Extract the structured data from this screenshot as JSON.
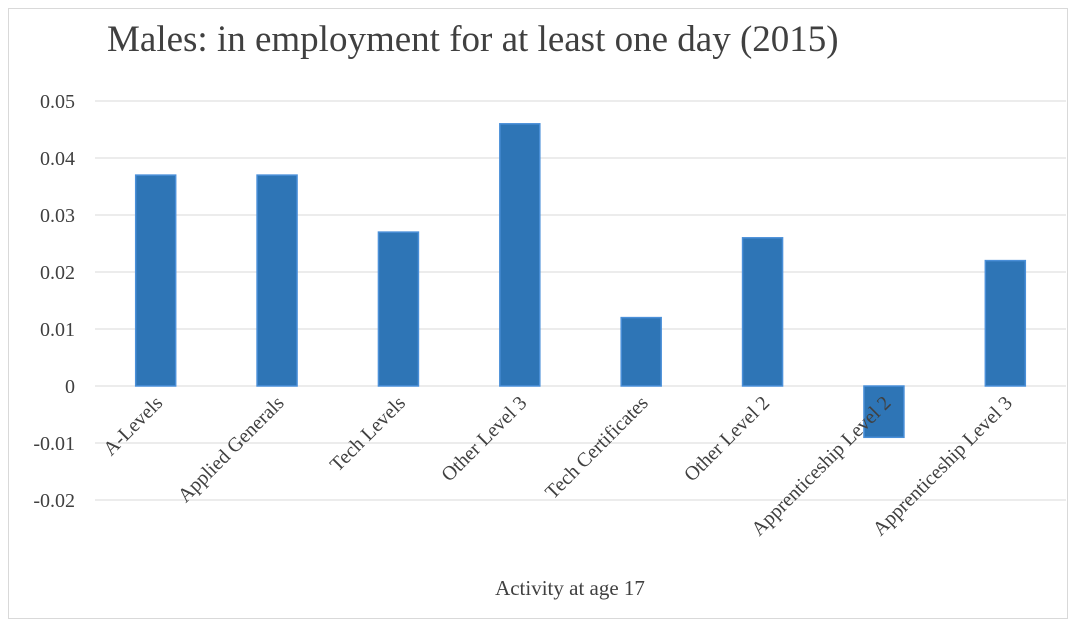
{
  "chart_data": {
    "type": "bar",
    "title": "Males: in employment for at least one day (2015)",
    "xlabel": "Activity at age 17",
    "ylabel": "",
    "categories": [
      "A-Levels",
      "Applied Generals",
      "Tech Levels",
      "Other  Level 3",
      "Tech Certificates",
      "Other  Level 2",
      "Apprenticeship Level 2",
      "Apprenticeship Level 3"
    ],
    "values": [
      0.037,
      0.037,
      0.027,
      0.046,
      0.012,
      0.026,
      -0.009,
      0.022
    ],
    "ylim": [
      -0.02,
      0.05
    ],
    "yticks": [
      0.05,
      0.04,
      0.03,
      0.02,
      0.01,
      0,
      -0.01,
      -0.02
    ],
    "ytick_labels": [
      "0.05",
      "0.04",
      "0.03",
      "0.02",
      "0.01",
      "0",
      "-0.01",
      "-0.02"
    ],
    "grid": true,
    "legend": "none",
    "bar_color": "#2e75b6",
    "bar_edge_color": "#4a8fd8",
    "grid_color": "#d9d9d9"
  }
}
